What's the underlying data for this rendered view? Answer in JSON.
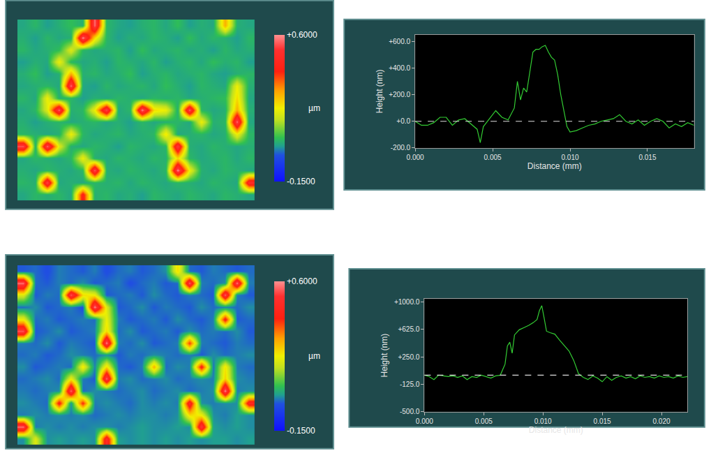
{
  "chart_data": [
    {
      "type": "heatmap",
      "tick_labels": false,
      "zlim": [
        -0.15,
        0.6
      ],
      "colorbar_ticks": [
        {
          "value": 0.6,
          "label": "+0.6000"
        },
        {
          "value": -0.15,
          "label": "-0.1500"
        }
      ],
      "colorbar_title": "µm",
      "z": [
        [
          0.04,
          0.06,
          0.03,
          0.05,
          0.07,
          0.05,
          0.58,
          0.06,
          0.04,
          0.03,
          0.05,
          0.06,
          0.04,
          0.07,
          0.03,
          0.05,
          0.04,
          0.3,
          0.05,
          0.04
        ],
        [
          0.05,
          0.03,
          0.06,
          0.04,
          0.05,
          0.6,
          0.25,
          0.06,
          0.03,
          0.05,
          0.04,
          0.06,
          0.05,
          0.03,
          0.07,
          0.04,
          0.06,
          0.05,
          0.03,
          0.06
        ],
        [
          0.06,
          0.04,
          0.05,
          0.07,
          0.2,
          0.06,
          0.04,
          0.05,
          0.06,
          0.03,
          0.07,
          0.04,
          0.05,
          0.06,
          0.04,
          0.05,
          0.03,
          0.06,
          0.04,
          0.05
        ],
        [
          0.03,
          0.05,
          0.04,
          0.22,
          0.06,
          0.04,
          0.05,
          0.03,
          0.06,
          0.05,
          0.04,
          0.06,
          0.03,
          0.05,
          0.06,
          0.04,
          0.07,
          0.05,
          0.06,
          0.03
        ],
        [
          0.05,
          0.07,
          0.03,
          0.05,
          0.3,
          0.05,
          0.06,
          0.04,
          0.05,
          0.07,
          0.03,
          0.05,
          0.06,
          0.04,
          0.05,
          0.06,
          0.04,
          0.03,
          0.05,
          0.06
        ],
        [
          0.04,
          0.05,
          0.06,
          0.04,
          0.58,
          0.04,
          0.03,
          0.06,
          0.04,
          0.05,
          0.06,
          0.04,
          0.07,
          0.05,
          0.03,
          0.06,
          0.05,
          0.04,
          0.22,
          0.05
        ],
        [
          0.06,
          0.04,
          0.22,
          0.05,
          0.06,
          0.03,
          0.05,
          0.04,
          0.06,
          0.05,
          0.04,
          0.06,
          0.05,
          0.06,
          0.04,
          0.05,
          0.06,
          0.07,
          0.25,
          0.04
        ],
        [
          0.04,
          0.06,
          0.2,
          0.58,
          0.05,
          0.06,
          0.22,
          0.56,
          0.04,
          0.06,
          0.6,
          0.25,
          0.22,
          0.05,
          0.58,
          0.06,
          0.04,
          0.05,
          0.3,
          0.05
        ],
        [
          0.05,
          0.03,
          0.05,
          0.06,
          0.04,
          0.05,
          0.06,
          0.04,
          0.05,
          0.03,
          0.06,
          0.04,
          0.05,
          0.06,
          0.04,
          0.22,
          0.05,
          0.06,
          0.58,
          0.04
        ],
        [
          0.06,
          0.05,
          0.04,
          0.05,
          0.22,
          0.06,
          0.04,
          0.05,
          0.06,
          0.04,
          0.05,
          0.06,
          0.24,
          0.04,
          0.05,
          0.06,
          0.04,
          0.05,
          0.22,
          0.06
        ],
        [
          0.56,
          0.05,
          0.58,
          0.2,
          0.05,
          0.04,
          0.06,
          0.05,
          0.03,
          0.06,
          0.05,
          0.04,
          0.06,
          0.55,
          0.05,
          0.04,
          0.06,
          0.05,
          0.04,
          0.05
        ],
        [
          0.04,
          0.06,
          0.05,
          0.04,
          0.06,
          0.22,
          0.05,
          0.04,
          0.06,
          0.05,
          0.04,
          0.06,
          0.05,
          0.25,
          0.06,
          0.04,
          0.05,
          0.06,
          0.04,
          0.06
        ],
        [
          0.05,
          0.04,
          0.06,
          0.05,
          0.04,
          0.06,
          0.57,
          0.05,
          0.04,
          0.06,
          0.05,
          0.04,
          0.06,
          0.6,
          0.22,
          0.05,
          0.04,
          0.06,
          0.05,
          0.04
        ],
        [
          0.06,
          0.05,
          0.56,
          0.04,
          0.05,
          0.04,
          0.06,
          0.05,
          0.06,
          0.04,
          0.06,
          0.05,
          0.04,
          0.06,
          0.05,
          0.04,
          0.06,
          0.05,
          0.04,
          0.5
        ],
        [
          0.04,
          0.06,
          0.05,
          0.06,
          0.04,
          0.45,
          0.05,
          0.06,
          0.04,
          0.05,
          0.03,
          0.06,
          0.05,
          0.04,
          0.06,
          0.05,
          0.04,
          0.06,
          0.05,
          0.04
        ]
      ]
    },
    {
      "type": "line",
      "xlabel": "Distance (mm)",
      "ylabel": "Height (nm)",
      "color": "#33cc33",
      "grid": false,
      "baseline": 0,
      "xlim": [
        0,
        0.018
      ],
      "xticks": [
        {
          "value": 0,
          "label": "0.000"
        },
        {
          "value": 0.005,
          "label": "0.005"
        },
        {
          "value": 0.01,
          "label": "0.010"
        },
        {
          "value": 0.015,
          "label": "0.015"
        }
      ],
      "ylim": [
        -200,
        650
      ],
      "yticks": [
        {
          "value": -200,
          "label": "-200.0"
        },
        {
          "value": 0,
          "label": "+0.0"
        },
        {
          "value": 200,
          "label": "+200.0"
        },
        {
          "value": 400,
          "label": "+400.0"
        },
        {
          "value": 600,
          "label": "+600.0"
        }
      ],
      "x": [
        0,
        0.0004,
        0.0008,
        0.0012,
        0.0016,
        0.002,
        0.0024,
        0.0028,
        0.0032,
        0.0036,
        0.004,
        0.0042,
        0.0044,
        0.0048,
        0.0052,
        0.0056,
        0.006,
        0.0064,
        0.0066,
        0.0068,
        0.007,
        0.0072,
        0.0074,
        0.0076,
        0.0078,
        0.008,
        0.0082,
        0.0084,
        0.0086,
        0.0088,
        0.009,
        0.0092,
        0.0094,
        0.0096,
        0.0098,
        0.01,
        0.0104,
        0.0108,
        0.0112,
        0.0116,
        0.012,
        0.0124,
        0.0128,
        0.0132,
        0.0136,
        0.014,
        0.0144,
        0.0148,
        0.0152,
        0.0156,
        0.016,
        0.0164,
        0.0168,
        0.0172,
        0.0176,
        0.018
      ],
      "values": [
        0,
        -30,
        -30,
        -10,
        30,
        30,
        -30,
        10,
        20,
        -20,
        -60,
        -160,
        -40,
        20,
        80,
        30,
        10,
        100,
        300,
        160,
        250,
        220,
        380,
        520,
        540,
        540,
        560,
        570,
        520,
        480,
        460,
        350,
        200,
        80,
        -40,
        -80,
        -70,
        -50,
        -30,
        -20,
        0,
        10,
        20,
        50,
        0,
        -20,
        10,
        -30,
        0,
        20,
        0,
        -50,
        -20,
        -40,
        -10,
        -30
      ]
    },
    {
      "type": "heatmap",
      "tick_labels": false,
      "zlim": [
        -0.15,
        0.6
      ],
      "colorbar_ticks": [
        {
          "value": 0.6,
          "label": "+0.6000"
        },
        {
          "value": -0.15,
          "label": "-0.1500"
        }
      ],
      "colorbar_title": "µm",
      "z": [
        [
          -0.01,
          0.0,
          -0.02,
          0.01,
          0.0,
          -0.01,
          0.01,
          -0.02,
          0.0,
          0.01,
          -0.01,
          0.0,
          0.02,
          0.25,
          0.0,
          -0.01,
          0.01,
          0.0,
          -0.01,
          0.0
        ],
        [
          0.58,
          0.0,
          -0.01,
          0.01,
          0.0,
          0.02,
          -0.01,
          0.0,
          0.01,
          -0.02,
          0.0,
          0.01,
          -0.01,
          0.0,
          0.58,
          0.01,
          0.0,
          0.02,
          0.6,
          0.01
        ],
        [
          0.2,
          -0.01,
          0.01,
          0.0,
          0.57,
          0.25,
          0.22,
          -0.01,
          0.0,
          0.01,
          -0.01,
          0.02,
          0.0,
          -0.01,
          0.01,
          0.0,
          -0.01,
          0.58,
          0.01,
          -0.01
        ],
        [
          0.0,
          0.02,
          -0.01,
          0.0,
          0.01,
          -0.02,
          0.6,
          0.2,
          -0.01,
          0.0,
          0.02,
          -0.01,
          0.01,
          0.0,
          -0.01,
          0.02,
          0.0,
          0.01,
          0.0,
          0.02
        ],
        [
          0.22,
          0.0,
          0.01,
          -0.01,
          0.0,
          0.01,
          0.0,
          0.22,
          0.01,
          -0.01,
          0.0,
          0.01,
          -0.01,
          0.02,
          0.0,
          -0.01,
          0.01,
          0.45,
          -0.01,
          0.0
        ],
        [
          0.56,
          -0.01,
          0.0,
          0.02,
          -0.01,
          0.0,
          0.01,
          0.25,
          0.0,
          0.02,
          -0.01,
          0.0,
          0.01,
          -0.01,
          0.02,
          0.0,
          0.01,
          0.0,
          0.02,
          -0.01
        ],
        [
          0.01,
          0.0,
          0.02,
          -0.01,
          0.01,
          0.0,
          -0.01,
          0.6,
          0.01,
          0.0,
          0.02,
          -0.01,
          0.0,
          0.01,
          0.4,
          0.01,
          0.0,
          -0.01,
          0.01,
          0.0
        ],
        [
          0.0,
          0.01,
          -0.01,
          0.0,
          0.02,
          0.01,
          0.0,
          0.02,
          -0.01,
          0.01,
          0.0,
          0.02,
          0.01,
          0.0,
          0.01,
          -0.01,
          0.02,
          0.0,
          0.01,
          0.02
        ],
        [
          0.02,
          -0.01,
          0.0,
          0.01,
          0.0,
          0.24,
          0.01,
          0.25,
          0.0,
          -0.01,
          0.01,
          0.3,
          0.0,
          0.02,
          0.01,
          0.45,
          0.0,
          0.24,
          0.01,
          0.0
        ],
        [
          0.0,
          0.01,
          0.02,
          0.0,
          0.22,
          0.01,
          -0.01,
          0.58,
          0.01,
          0.02,
          0.0,
          0.01,
          0.02,
          0.0,
          0.01,
          0.02,
          0.01,
          0.26,
          0.02,
          0.01
        ],
        [
          0.01,
          0.0,
          0.01,
          0.02,
          0.58,
          0.0,
          0.02,
          0.01,
          0.0,
          0.01,
          0.02,
          0.0,
          0.01,
          0.02,
          0.0,
          0.01,
          0.02,
          0.6,
          0.01,
          0.02
        ],
        [
          0.02,
          0.01,
          0.0,
          0.45,
          0.02,
          0.42,
          0.01,
          0.02,
          0.01,
          0.0,
          0.02,
          0.01,
          0.02,
          0.01,
          0.5,
          0.02,
          0.01,
          0.02,
          0.02,
          0.48
        ],
        [
          0.01,
          0.02,
          0.01,
          0.02,
          0.01,
          0.02,
          0.0,
          0.01,
          0.02,
          0.01,
          0.02,
          0.02,
          0.01,
          0.02,
          0.25,
          0.22,
          0.02,
          0.01,
          0.03,
          0.02
        ],
        [
          0.58,
          0.01,
          0.02,
          0.01,
          0.02,
          0.01,
          0.02,
          0.02,
          0.01,
          0.02,
          0.03,
          0.02,
          0.02,
          0.03,
          0.02,
          0.55,
          0.03,
          0.02,
          0.03,
          0.02
        ],
        [
          0.02,
          0.2,
          0.02,
          0.03,
          0.02,
          0.03,
          0.02,
          0.5,
          0.03,
          0.02,
          0.03,
          0.02,
          0.03,
          0.02,
          0.03,
          0.02,
          0.03,
          0.03,
          0.02,
          0.03
        ]
      ]
    },
    {
      "type": "line",
      "xlabel": "Distance (mm)",
      "ylabel": "Height (nm)",
      "color": "#33cc33",
      "grid": false,
      "baseline": 0,
      "xlim": [
        0,
        0.0222
      ],
      "xticks": [
        {
          "value": 0,
          "label": "0.000"
        },
        {
          "value": 0.005,
          "label": "0.005"
        },
        {
          "value": 0.01,
          "label": "0.010"
        },
        {
          "value": 0.015,
          "label": "0.015"
        },
        {
          "value": 0.02,
          "label": "0.020"
        }
      ],
      "ylim": [
        -500,
        1040
      ],
      "yticks": [
        {
          "value": -500,
          "label": "-500.0"
        },
        {
          "value": -125,
          "label": "-125.0"
        },
        {
          "value": 250,
          "label": "+250.0"
        },
        {
          "value": 625,
          "label": "+625.0"
        },
        {
          "value": 1000,
          "label": "+1000.0"
        }
      ],
      "x": [
        0,
        0.0004,
        0.0008,
        0.0012,
        0.0016,
        0.002,
        0.0024,
        0.0028,
        0.0032,
        0.0036,
        0.004,
        0.0044,
        0.0048,
        0.0052,
        0.0056,
        0.006,
        0.0064,
        0.0068,
        0.007,
        0.0072,
        0.0074,
        0.0076,
        0.008,
        0.0084,
        0.0088,
        0.0092,
        0.0095,
        0.0097,
        0.0099,
        0.0101,
        0.0103,
        0.0106,
        0.011,
        0.0114,
        0.0118,
        0.0122,
        0.0126,
        0.013,
        0.0134,
        0.0138,
        0.0142,
        0.0146,
        0.015,
        0.0154,
        0.0158,
        0.0162,
        0.0166,
        0.017,
        0.0174,
        0.0178,
        0.0182,
        0.0186,
        0.019,
        0.0194,
        0.0198,
        0.0202,
        0.0206,
        0.021,
        0.0214,
        0.0218,
        0.0222
      ],
      "values": [
        0,
        -20,
        -60,
        0,
        -10,
        -20,
        -10,
        -30,
        -10,
        -60,
        -20,
        -30,
        0,
        -20,
        -40,
        -10,
        0,
        150,
        400,
        450,
        300,
        550,
        620,
        650,
        680,
        720,
        760,
        880,
        950,
        780,
        600,
        580,
        560,
        480,
        400,
        330,
        200,
        20,
        -30,
        -60,
        -10,
        -40,
        -90,
        -20,
        -70,
        -30,
        -10,
        -40,
        -20,
        -50,
        -10,
        -30,
        -20,
        -40,
        -10,
        -30,
        -20,
        -40,
        -10,
        -30,
        -20
      ]
    }
  ]
}
